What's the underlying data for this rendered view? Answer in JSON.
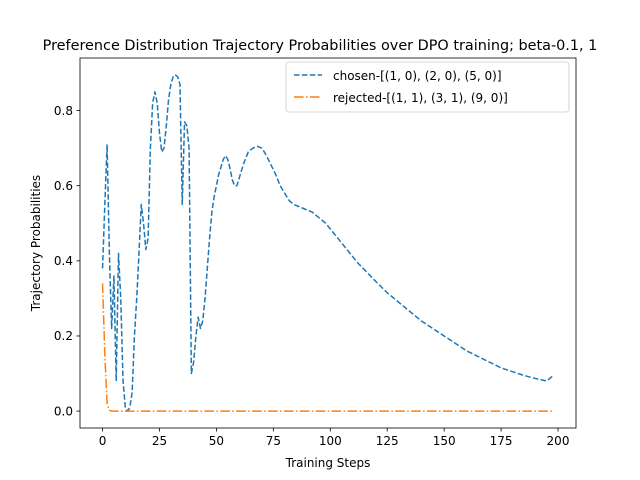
{
  "chart_data": {
    "type": "line",
    "title": "Preference Distribution Trajectory Probabilities over DPO training;  beta-0.1, 1",
    "xlabel": "Training Steps",
    "ylabel": "Trajectory Probabilities",
    "xlim": [
      -9.9,
      207.9
    ],
    "ylim": [
      -0.045,
      0.94
    ],
    "xticks": [
      0,
      25,
      50,
      75,
      100,
      125,
      150,
      175,
      200
    ],
    "yticks": [
      0.0,
      0.2,
      0.4,
      0.6,
      0.8
    ],
    "ytick_labels": [
      "0.0",
      "0.2",
      "0.4",
      "0.6",
      "0.8"
    ],
    "grid": false,
    "legend_position": "top-right",
    "series": [
      {
        "name": "chosen-[(1, 0), (2, 0), (5, 0)]",
        "color": "#1f77b4",
        "style": "dashed",
        "x": [
          0,
          1,
          2,
          3,
          4,
          5,
          6,
          7,
          8,
          9,
          10,
          11,
          12,
          13,
          14,
          15,
          16,
          17,
          18,
          19,
          20,
          21,
          22,
          23,
          24,
          25,
          26,
          27,
          28,
          29,
          30,
          31,
          32,
          33,
          34,
          35,
          36,
          37,
          38,
          39,
          40,
          41,
          42,
          43,
          44,
          45,
          46,
          47,
          48,
          49,
          50,
          51,
          52,
          53,
          54,
          55,
          56,
          57,
          58,
          59,
          60,
          62,
          64,
          66,
          68,
          70,
          72,
          74,
          76,
          78,
          80,
          82,
          84,
          86,
          88,
          90,
          92,
          94,
          96,
          98,
          100,
          104,
          108,
          112,
          116,
          120,
          125,
          130,
          135,
          140,
          145,
          150,
          155,
          160,
          165,
          170,
          175,
          180,
          185,
          190,
          195,
          198
        ],
        "y": [
          0.38,
          0.55,
          0.71,
          0.42,
          0.22,
          0.36,
          0.08,
          0.42,
          0.3,
          0.08,
          0.01,
          0.0,
          0.01,
          0.05,
          0.2,
          0.3,
          0.42,
          0.55,
          0.5,
          0.43,
          0.46,
          0.7,
          0.82,
          0.85,
          0.82,
          0.74,
          0.69,
          0.7,
          0.76,
          0.83,
          0.87,
          0.89,
          0.895,
          0.89,
          0.87,
          0.55,
          0.77,
          0.76,
          0.7,
          0.1,
          0.13,
          0.2,
          0.25,
          0.22,
          0.24,
          0.3,
          0.38,
          0.46,
          0.53,
          0.57,
          0.6,
          0.63,
          0.65,
          0.67,
          0.68,
          0.67,
          0.645,
          0.615,
          0.6,
          0.6,
          0.62,
          0.66,
          0.69,
          0.7,
          0.705,
          0.7,
          0.68,
          0.655,
          0.63,
          0.6,
          0.58,
          0.56,
          0.55,
          0.545,
          0.54,
          0.535,
          0.53,
          0.52,
          0.51,
          0.5,
          0.485,
          0.455,
          0.425,
          0.395,
          0.37,
          0.345,
          0.315,
          0.29,
          0.265,
          0.24,
          0.22,
          0.2,
          0.18,
          0.16,
          0.145,
          0.13,
          0.115,
          0.105,
          0.095,
          0.087,
          0.08,
          0.095
        ]
      },
      {
        "name": "rejected-[(1, 1), (3, 1), (9, 0)]",
        "color": "#ff7f0e",
        "style": "dashdot",
        "x": [
          0,
          1,
          2,
          3,
          4,
          5,
          10,
          25,
          50,
          75,
          100,
          125,
          150,
          175,
          198
        ],
        "y": [
          0.34,
          0.15,
          0.02,
          0.002,
          0.0,
          0.0,
          0.0,
          0.0,
          0.0,
          0.0,
          0.0,
          0.0,
          0.0,
          0.0,
          0.0
        ]
      }
    ]
  }
}
